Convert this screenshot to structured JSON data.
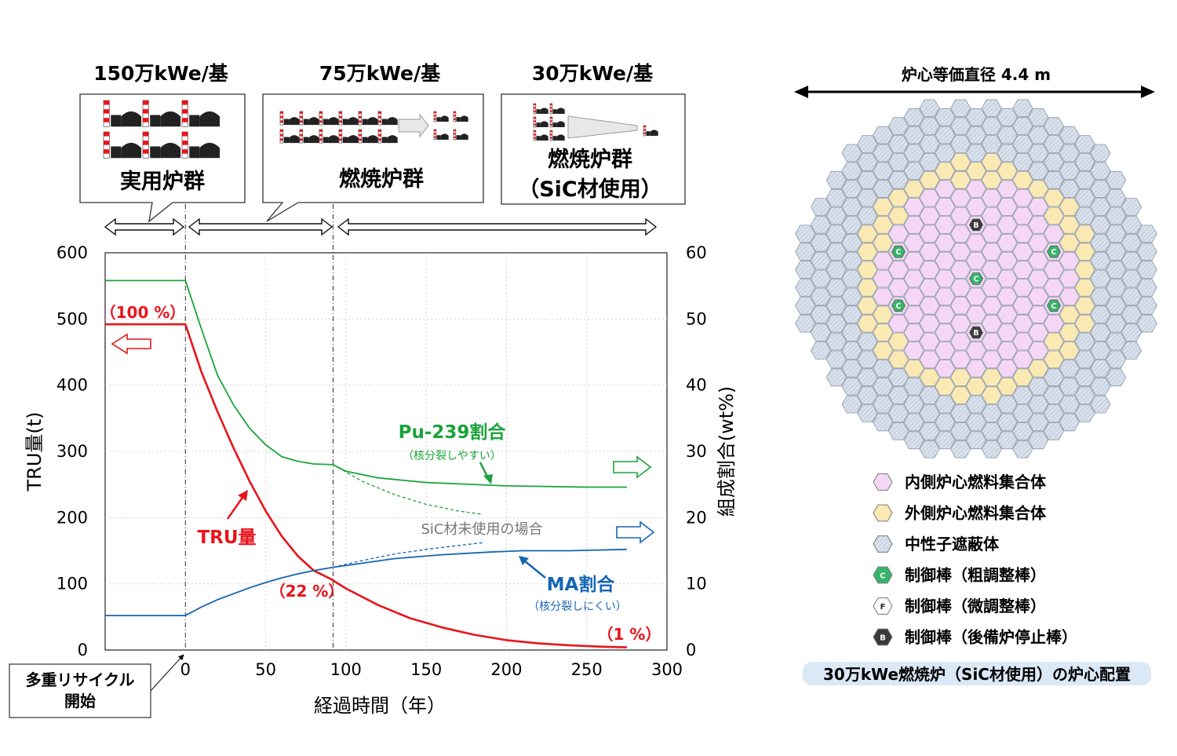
{
  "scenario": {
    "stages": [
      {
        "capacity": "150万kWe/基",
        "group": "実用炉群",
        "group2": ""
      },
      {
        "capacity": "75万kWe/基",
        "group": "燃焼炉群",
        "group2": ""
      },
      {
        "capacity": "30万kWe/基",
        "group": "燃焼炉群",
        "group2": "（SiC材使用）"
      }
    ],
    "start_note_line1": "多重リサイクル",
    "start_note_line2": "開始"
  },
  "chart_data": {
    "type": "line",
    "xlabel": "経過時間（年）",
    "ylabel_left": "TRU量(t)",
    "ylabel_right": "組成割合(wt%)",
    "xlim": [
      -50,
      300
    ],
    "ylim_left": [
      0,
      600
    ],
    "ylim_right": [
      0,
      60
    ],
    "xticks": [
      0,
      50,
      100,
      150,
      200,
      250,
      300
    ],
    "yticks_left": [
      0,
      100,
      200,
      300,
      400,
      500,
      600
    ],
    "yticks_right": [
      0,
      10,
      20,
      30,
      40,
      50,
      60
    ],
    "series": [
      {
        "name": "TRU量",
        "axis": "left",
        "color": "#e8141b",
        "x": [
          -50,
          0,
          10,
          20,
          30,
          40,
          50,
          60,
          70,
          80,
          90,
          100,
          120,
          140,
          160,
          180,
          200,
          220,
          240,
          260,
          275
        ],
        "y": [
          492,
          492,
          420,
          360,
          305,
          255,
          210,
          172,
          142,
          120,
          108,
          93,
          68,
          48,
          34,
          23,
          15,
          10,
          7,
          5,
          4
        ]
      },
      {
        "name": "Pu-239割合",
        "axis": "right",
        "color": "#1aa33a",
        "x": [
          -50,
          0,
          10,
          20,
          30,
          40,
          50,
          60,
          70,
          80,
          92,
          100,
          120,
          150,
          200,
          250,
          275
        ],
        "y": [
          55.8,
          55.8,
          48.5,
          41.5,
          37,
          33.5,
          31,
          29.2,
          28.5,
          28.1,
          28,
          27,
          26,
          25.3,
          24.8,
          24.6,
          24.6
        ]
      },
      {
        "name": "MA割合",
        "axis": "right",
        "color": "#1565b4",
        "x": [
          -50,
          0,
          10,
          20,
          30,
          40,
          50,
          60,
          70,
          80,
          92,
          110,
          130,
          160,
          190,
          210,
          240,
          275
        ],
        "y": [
          5.2,
          5.2,
          6.5,
          7.6,
          8.5,
          9.4,
          10.2,
          10.9,
          11.5,
          12,
          12.5,
          13.1,
          13.8,
          14.4,
          14.8,
          15,
          15,
          15.2
        ]
      },
      {
        "name": "Pu-239割合（SiC材未使用）",
        "axis": "right",
        "dashed": true,
        "color": "#1aa33a",
        "x": [
          92,
          110,
          130,
          150,
          170,
          185
        ],
        "y": [
          28,
          25.5,
          23.5,
          22,
          21,
          20.5
        ]
      },
      {
        "name": "MA割合（SiC材未使用）",
        "axis": "right",
        "dashed": true,
        "color": "#1565b4",
        "x": [
          92,
          110,
          130,
          150,
          170,
          185
        ],
        "y": [
          12.5,
          13.5,
          14.5,
          15.2,
          15.8,
          16.2
        ]
      }
    ],
    "annotations": {
      "tru_label": "TRU量",
      "pu_label": "Pu-239割合",
      "pu_sub": "（核分裂しやすい）",
      "ma_label": "MA割合",
      "ma_sub": "（核分裂しにくい）",
      "sic_note": "SiC材未使用の場合",
      "pct_100": "（100 %）",
      "pct_22": "（22 %）",
      "pct_1": "（1 %）"
    }
  },
  "core": {
    "diameter_label": "炉心等価直径 4.4 m",
    "legend": [
      {
        "key": "inner",
        "label": "内側炉心燃料集合体",
        "color": "#f5d7f5"
      },
      {
        "key": "outer",
        "label": "外側炉心燃料集合体",
        "color": "#fbe9b3"
      },
      {
        "key": "shield",
        "label": "中性子遮蔽体",
        "color": "#d9e1ec"
      },
      {
        "key": "C",
        "label": "制御棒（粗調整棒）",
        "color": "#36b56a"
      },
      {
        "key": "F",
        "label": "制御棒（微調整棒）",
        "color": "#ffffff"
      },
      {
        "key": "B",
        "label": "制御棒（後備炉停止棒）",
        "color": "#3a3a3a"
      }
    ],
    "caption": "30万kWe燃焼炉（SiC材使用）の炉心配置"
  }
}
